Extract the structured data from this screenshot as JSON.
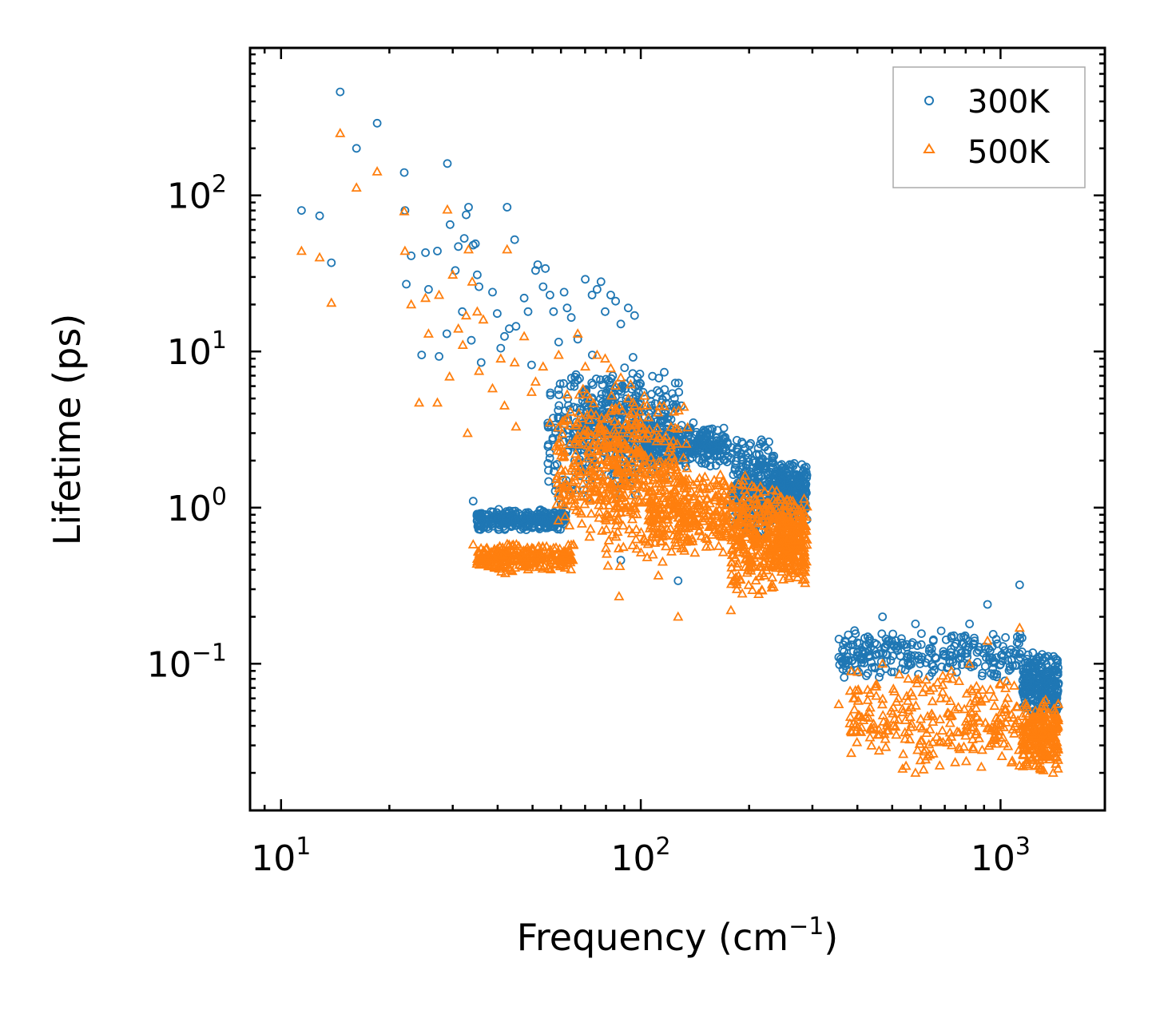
{
  "chart_data": {
    "type": "scatter",
    "title": "",
    "xlabel": "Frequency (cm",
    "xlabel_sup": "−1",
    "xlabel_tail": ")",
    "ylabel": "Lifetime (ps)",
    "xscale": "log",
    "yscale": "log",
    "xlim": [
      8.2,
      1950
    ],
    "ylim": [
      0.0115,
      880
    ],
    "x_ticks": [
      {
        "value": 10,
        "base": "10",
        "exp": "1"
      },
      {
        "value": 100,
        "base": "10",
        "exp": "2"
      },
      {
        "value": 1000,
        "base": "10",
        "exp": "3"
      }
    ],
    "y_ticks": [
      {
        "value": 0.1,
        "base": "10",
        "exp": "−1"
      },
      {
        "value": 1,
        "base": "10",
        "exp": "0"
      },
      {
        "value": 10,
        "base": "10",
        "exp": "1"
      },
      {
        "value": 100,
        "base": "10",
        "exp": "2"
      }
    ],
    "legend_position": "top-right",
    "series": [
      {
        "name": "300K",
        "marker": "circle",
        "color": "#1f77b4",
        "points": [
          [
            11.4,
            80
          ],
          [
            12.8,
            74
          ],
          [
            13.8,
            37
          ],
          [
            14.6,
            460
          ],
          [
            16.2,
            200
          ],
          [
            18.5,
            290
          ],
          [
            22,
            140
          ],
          [
            22.1,
            80
          ],
          [
            22.3,
            27
          ],
          [
            23,
            41
          ],
          [
            25.2,
            43
          ],
          [
            25.7,
            25
          ],
          [
            24.6,
            9.5
          ],
          [
            27.2,
            44
          ],
          [
            27.5,
            9.3
          ],
          [
            29,
            160
          ],
          [
            28.9,
            13
          ],
          [
            29.5,
            65
          ],
          [
            30.5,
            33
          ],
          [
            31.1,
            47
          ],
          [
            31.9,
            18
          ],
          [
            32.3,
            53
          ],
          [
            32.7,
            75
          ],
          [
            33.2,
            84
          ],
          [
            33.8,
            11.8
          ],
          [
            34.7,
            49
          ],
          [
            35.1,
            31
          ],
          [
            35.5,
            26
          ],
          [
            36,
            8.5
          ],
          [
            34.2,
            48
          ],
          [
            38.7,
            24
          ],
          [
            39.9,
            17.5
          ],
          [
            40.8,
            10.5
          ],
          [
            41.8,
            12.5
          ],
          [
            42.5,
            84
          ],
          [
            43.1,
            14
          ],
          [
            44.6,
            52
          ],
          [
            45,
            14.5
          ],
          [
            47.4,
            22
          ],
          [
            48.6,
            18
          ],
          [
            49.7,
            8.2
          ],
          [
            51,
            33
          ],
          [
            51.7,
            36
          ],
          [
            53.5,
            26
          ],
          [
            54.3,
            34
          ],
          [
            55.9,
            23
          ],
          [
            57.2,
            18
          ],
          [
            59.1,
            11.5
          ],
          [
            61.2,
            24
          ],
          [
            62.4,
            19
          ],
          [
            64.1,
            16.5
          ],
          [
            66.8,
            12
          ],
          [
            70.1,
            29
          ],
          [
            73.2,
            23
          ],
          [
            75.6,
            25
          ],
          [
            77.5,
            28
          ],
          [
            79.6,
            18
          ],
          [
            82.5,
            23
          ],
          [
            85.1,
            21
          ],
          [
            88,
            15
          ],
          [
            92.3,
            19
          ],
          [
            96.1,
            17
          ],
          [
            34.2,
            1.1
          ],
          [
            36.1,
            0.92
          ],
          [
            38.4,
            0.85
          ],
          [
            41,
            0.8
          ],
          [
            43.5,
            0.9
          ],
          [
            46,
            0.78
          ],
          [
            50,
            0.82
          ],
          [
            55,
            0.9
          ],
          [
            60,
            1.05
          ],
          [
            66,
            1.3
          ],
          [
            72,
            1.5
          ],
          [
            80,
            2.2
          ],
          [
            88,
            0.46
          ],
          [
            107,
            4.5
          ],
          [
            112,
            4.2
          ],
          [
            118,
            3.0
          ],
          [
            127,
            0.34
          ],
          [
            140,
            3.5
          ],
          [
            158,
            3.2
          ],
          [
            178,
            0.82
          ],
          [
            185,
            2.7
          ],
          [
            195,
            2.4
          ],
          [
            210,
            2.2
          ],
          [
            232,
            2.0
          ],
          [
            260,
            1.6
          ],
          [
            285,
            1.8
          ],
          [
            355,
            0.11
          ],
          [
            390,
            0.12
          ],
          [
            430,
            0.12
          ],
          [
            470,
            0.2
          ],
          [
            520,
            0.13
          ],
          [
            580,
            0.18
          ],
          [
            650,
            0.14
          ],
          [
            730,
            0.15
          ],
          [
            820,
            0.18
          ],
          [
            920,
            0.24
          ],
          [
            1130,
            0.32
          ],
          [
            1250,
            0.1
          ],
          [
            1330,
            0.11
          ],
          [
            1450,
            0.075
          ]
        ],
        "bands": [
          {
            "x": [
              55,
              100
            ],
            "y": [
              1.0,
              10
            ]
          },
          {
            "x": [
              68,
              130
            ],
            "y": [
              1.5,
              8
            ]
          },
          {
            "x": [
              100,
              175
            ],
            "y": [
              1.8,
              3.4
            ]
          },
          {
            "x": [
              178,
              235
            ],
            "y": [
              0.6,
              2.9
            ]
          },
          {
            "x": [
              235,
              290
            ],
            "y": [
              0.8,
              2.0
            ]
          },
          {
            "x": [
              35,
              62
            ],
            "y": [
              0.7,
              1.0
            ]
          },
          {
            "x": [
              355,
              1150
            ],
            "y": [
              0.075,
              0.17
            ]
          },
          {
            "x": [
              1150,
              1450
            ],
            "y": [
              0.045,
              0.12
            ]
          }
        ]
      },
      {
        "name": "500K",
        "marker": "triangle",
        "color": "#ff7f0e",
        "points": [
          [
            11.4,
            44
          ],
          [
            12.8,
            40
          ],
          [
            13.8,
            20.5
          ],
          [
            14.6,
            250
          ],
          [
            16.2,
            112
          ],
          [
            18.5,
            142
          ],
          [
            22,
            79
          ],
          [
            22.1,
            44
          ],
          [
            23,
            20
          ],
          [
            24.2,
            4.7
          ],
          [
            25.2,
            22
          ],
          [
            25.7,
            13
          ],
          [
            27.2,
            4.7
          ],
          [
            27.5,
            23
          ],
          [
            29,
            81
          ],
          [
            29.4,
            6.9
          ],
          [
            30,
            31
          ],
          [
            31.1,
            14
          ],
          [
            32,
            11
          ],
          [
            32.7,
            17
          ],
          [
            33,
            3
          ],
          [
            33.2,
            45
          ],
          [
            34,
            28
          ],
          [
            35.1,
            18
          ],
          [
            35.5,
            7.5
          ],
          [
            36.5,
            16
          ],
          [
            38.7,
            5.8
          ],
          [
            40.8,
            9
          ],
          [
            41.8,
            4.5
          ],
          [
            42.5,
            45
          ],
          [
            44.6,
            8.5
          ],
          [
            45,
            3.3
          ],
          [
            47.4,
            12.5
          ],
          [
            49.7,
            5.5
          ],
          [
            51,
            6.4
          ],
          [
            53.5,
            8
          ],
          [
            55.9,
            3.5
          ],
          [
            59.1,
            9.5
          ],
          [
            62.4,
            5.3
          ],
          [
            66.8,
            13
          ],
          [
            70.1,
            8
          ],
          [
            75.6,
            9.5
          ],
          [
            79.6,
            9
          ],
          [
            82.5,
            7.8
          ],
          [
            88,
            6.8
          ],
          [
            92.3,
            5
          ],
          [
            96.1,
            4.5
          ],
          [
            34.2,
            0.58
          ],
          [
            36,
            0.5
          ],
          [
            38,
            0.47
          ],
          [
            40.5,
            0.42
          ],
          [
            42,
            0.38
          ],
          [
            45,
            0.46
          ],
          [
            50,
            0.45
          ],
          [
            55,
            0.47
          ],
          [
            60,
            0.5
          ],
          [
            65,
            0.58
          ],
          [
            72,
            0.65
          ],
          [
            80,
            0.55
          ],
          [
            87,
            0.27
          ],
          [
            108,
            0.5
          ],
          [
            115,
            0.45
          ],
          [
            127,
            0.2
          ],
          [
            140,
            1.4
          ],
          [
            160,
            1.5
          ],
          [
            178,
            0.22
          ],
          [
            185,
            0.3
          ],
          [
            195,
            1.6
          ],
          [
            210,
            0.9
          ],
          [
            232,
            1.3
          ],
          [
            260,
            0.6
          ],
          [
            285,
            0.9
          ],
          [
            355,
            0.055
          ],
          [
            390,
            0.06
          ],
          [
            430,
            0.045
          ],
          [
            470,
            0.1
          ],
          [
            520,
            0.06
          ],
          [
            580,
            0.02
          ],
          [
            650,
            0.07
          ],
          [
            730,
            0.09
          ],
          [
            820,
            0.1
          ],
          [
            920,
            0.14
          ],
          [
            1130,
            0.17
          ],
          [
            1250,
            0.05
          ],
          [
            1330,
            0.04
          ],
          [
            1400,
            0.02
          ]
        ],
        "bands": [
          {
            "x": [
              58,
              105
            ],
            "y": [
              0.6,
              6.5
            ]
          },
          {
            "x": [
              75,
              135
            ],
            "y": [
              0.35,
              5.5
            ]
          },
          {
            "x": [
              105,
              175
            ],
            "y": [
              0.5,
              1.8
            ]
          },
          {
            "x": [
              178,
              240
            ],
            "y": [
              0.25,
              1.6
            ]
          },
          {
            "x": [
              240,
              290
            ],
            "y": [
              0.3,
              1.3
            ]
          },
          {
            "x": [
              35,
              65
            ],
            "y": [
              0.38,
              0.6
            ]
          },
          {
            "x": [
              380,
              1150
            ],
            "y": [
              0.02,
              0.1
            ]
          },
          {
            "x": [
              1150,
              1450
            ],
            "y": [
              0.02,
              0.06
            ]
          }
        ]
      }
    ]
  }
}
